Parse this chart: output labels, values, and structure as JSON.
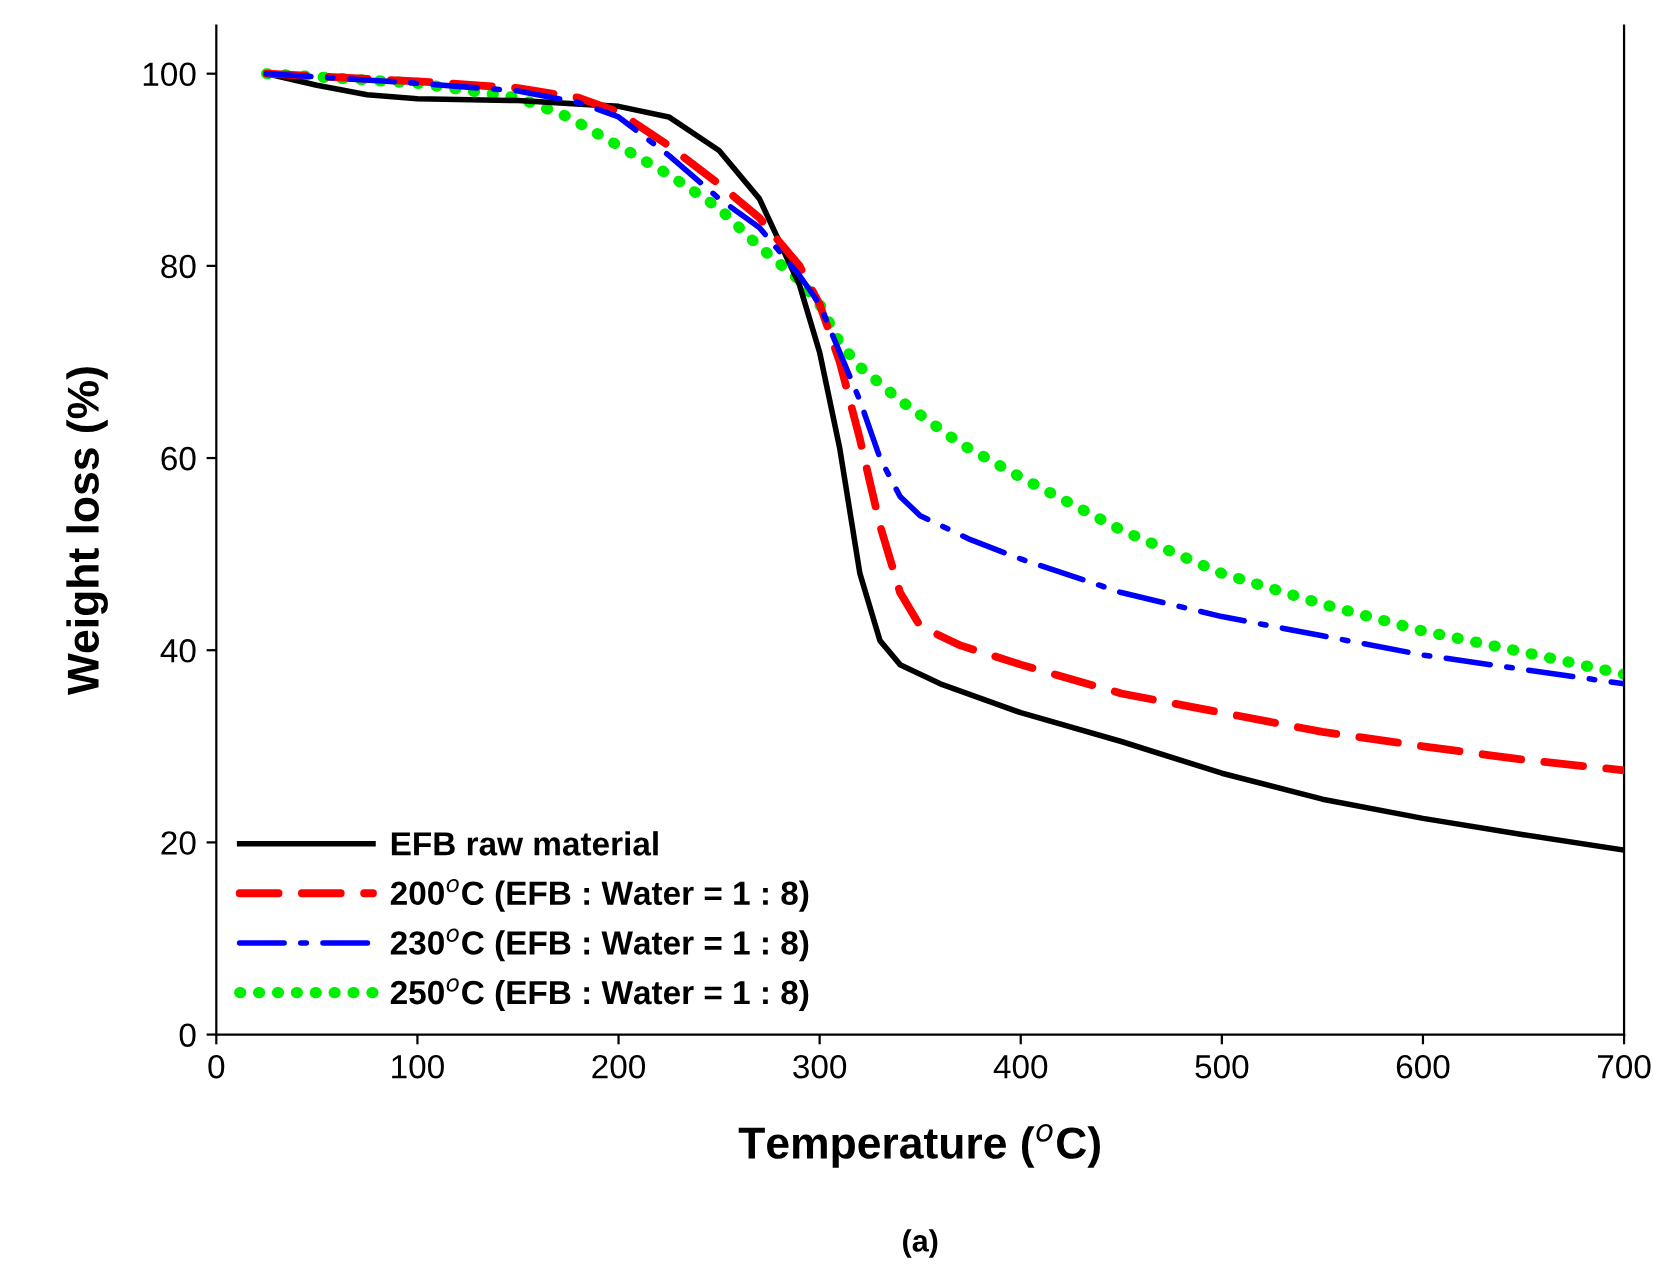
{
  "chart_data": {
    "type": "line",
    "xlabel": "Temperature ($^{o}$C)",
    "ylabel": "Weight loss (%)",
    "annotations": [
      "(a)"
    ],
    "xlim": [
      0,
      700
    ],
    "xticks": [
      0,
      100,
      200,
      300,
      400,
      500,
      600,
      700
    ],
    "ylim": [
      0,
      105
    ],
    "yticks": [
      0,
      20,
      40,
      60,
      80,
      100
    ],
    "grid": false,
    "legend": "bottom left",
    "marker": "none",
    "series": [
      {
        "name": "EFB raw material",
        "color": "#000000",
        "line_style": "solid",
        "x": [
          25,
          50,
          75,
          100,
          150,
          200,
          225,
          250,
          270,
          290,
          300,
          310,
          320,
          330,
          340,
          360,
          400,
          450,
          500,
          550,
          600,
          650,
          700
        ],
        "values": [
          100,
          98.8,
          97.8,
          97.4,
          97.2,
          96.6,
          95.5,
          92,
          87,
          78,
          71,
          61,
          48,
          41,
          38.5,
          36.5,
          33.5,
          30.5,
          27.2,
          24.5,
          22.5,
          20.8,
          19.2
        ]
      },
      {
        "name": "200$^{o}$C (EFB : Water = 1 : 8)",
        "color": "#ff0000",
        "line_style": "dashed",
        "x": [
          25,
          100,
          150,
          180,
          200,
          225,
          250,
          270,
          290,
          300,
          310,
          320,
          330,
          340,
          350,
          370,
          400,
          450,
          500,
          550,
          600,
          650,
          700
        ],
        "values": [
          100,
          99.2,
          98.5,
          97.5,
          96,
          92.5,
          88.5,
          85,
          80,
          76,
          70,
          62,
          53,
          46,
          42.5,
          40.5,
          38.5,
          35.5,
          33.5,
          31.5,
          30,
          28.6,
          27.5
        ]
      },
      {
        "name": "230$^{o}$C (EFB : Water = 1 : 8)",
        "color": "#0000ff",
        "line_style": "dashdot",
        "x": [
          25,
          100,
          150,
          180,
          200,
          225,
          250,
          270,
          290,
          300,
          310,
          320,
          330,
          340,
          350,
          375,
          400,
          450,
          500,
          550,
          600,
          650,
          700
        ],
        "values": [
          100,
          99,
          98.2,
          97,
          95.5,
          91.5,
          87,
          84,
          79,
          76,
          71,
          66,
          60,
          56,
          54,
          51.5,
          49.5,
          46,
          43.5,
          41.5,
          39.5,
          38,
          36.5
        ]
      },
      {
        "name": "250$^{o}$C (EFB : Water = 1 : 8)",
        "color": "#00ee00",
        "line_style": "dotted",
        "x": [
          25,
          100,
          150,
          175,
          200,
          225,
          250,
          270,
          290,
          300,
          310,
          320,
          340,
          370,
          400,
          450,
          500,
          550,
          600,
          650,
          700
        ],
        "values": [
          100,
          99,
          97.5,
          95.5,
          92.5,
          89.5,
          86,
          82,
          78.5,
          76,
          72,
          69.5,
          66,
          61.5,
          58,
          52.5,
          48,
          44.8,
          42,
          39.8,
          37.5
        ]
      }
    ]
  }
}
